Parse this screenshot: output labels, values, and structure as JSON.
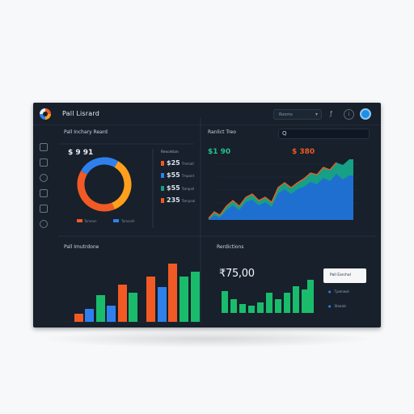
{
  "app": {
    "title": "Pall Lisrard"
  },
  "topbar": {
    "range_label": "Rooms",
    "range_chevron": "▾",
    "notification_icon": "bell-icon",
    "info_icon": "info-icon",
    "avatar_icon": "avatar"
  },
  "sidebar": {
    "icons": [
      "chart-icon",
      "layers-icon",
      "settings-icon",
      "grid-icon",
      "message-icon",
      "user-icon"
    ]
  },
  "panels": {
    "donut": {
      "title": "Pall Inchary Reard",
      "kpi": "$ 9 91",
      "legend_title": "Rescetion",
      "rows": [
        {
          "value": "$25",
          "label": "Tmmall",
          "color": "#f15a24"
        },
        {
          "value": "$55",
          "label": "Tmpont",
          "color": "#2f80ed"
        },
        {
          "value": "$55",
          "label": "Tompall",
          "color": "#16a085"
        },
        {
          "value": "235",
          "label": "Tomyoal",
          "color": "#f15a24"
        }
      ],
      "footer_labels": [
        "Tomeon",
        "Tomorsll"
      ]
    },
    "area": {
      "title": "Ranlict Treo",
      "kpi_left": "$1 90",
      "kpi_right": "$ 380",
      "search_placeholder": "Q"
    },
    "bars": {
      "title": "Pall Imutrdone"
    },
    "predictions": {
      "title": "Rerdictions",
      "big_value": "₹75,00",
      "popover_title": "Pall Earchal",
      "menu_items": [
        "Tpomwal",
        "Stooals"
      ]
    }
  },
  "colors": {
    "accent": "#2f80ed",
    "orange": "#f15a24",
    "amber": "#ff9f1c",
    "teal": "#16a085",
    "green": "#1abc6c"
  }
}
